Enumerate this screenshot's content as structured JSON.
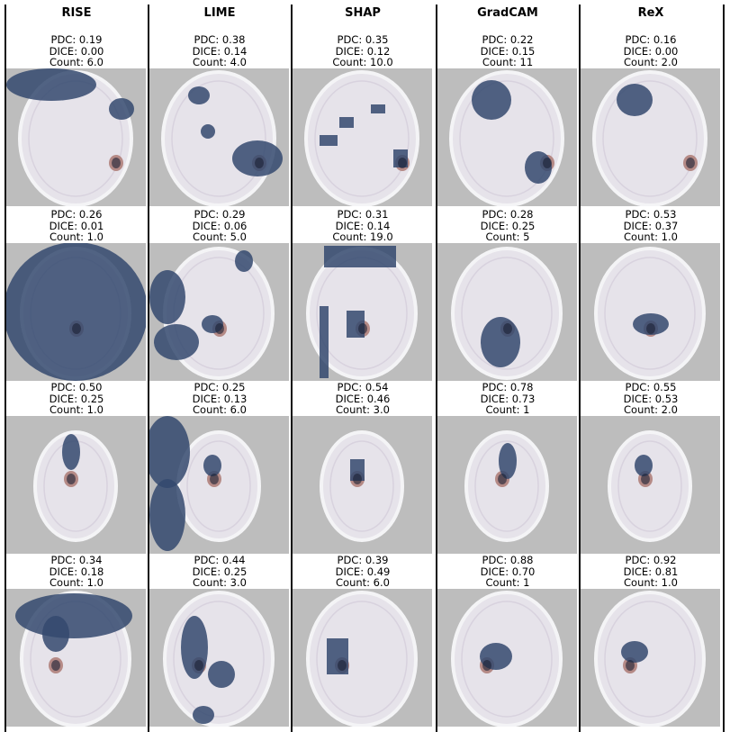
{
  "methods": [
    {
      "name": "RISE",
      "cells": [
        {
          "pdc": "PDC: 0.19",
          "dice": "DICE: 0.00",
          "count": "Count: 6.0"
        },
        {
          "pdc": "PDC: 0.26",
          "dice": "DICE: 0.01",
          "count": "Count: 1.0"
        },
        {
          "pdc": "PDC: 0.50",
          "dice": "DICE: 0.25",
          "count": "Count: 1.0"
        },
        {
          "pdc": "PDC: 0.34",
          "dice": "DICE: 0.18",
          "count": "Count: 1.0"
        }
      ]
    },
    {
      "name": "LIME",
      "cells": [
        {
          "pdc": "PDC: 0.38",
          "dice": "DICE: 0.14",
          "count": "Count: 4.0"
        },
        {
          "pdc": "PDC: 0.29",
          "dice": "DICE: 0.06",
          "count": "Count: 5.0"
        },
        {
          "pdc": "PDC: 0.25",
          "dice": "DICE: 0.13",
          "count": "Count: 6.0"
        },
        {
          "pdc": "PDC: 0.44",
          "dice": "DICE: 0.25",
          "count": "Count: 3.0"
        }
      ]
    },
    {
      "name": "SHAP",
      "cells": [
        {
          "pdc": "PDC: 0.35",
          "dice": "DICE: 0.12",
          "count": "Count: 10.0"
        },
        {
          "pdc": "PDC: 0.31",
          "dice": "DICE: 0.14",
          "count": "Count: 19.0"
        },
        {
          "pdc": "PDC: 0.54",
          "dice": "DICE: 0.46",
          "count": "Count: 3.0"
        },
        {
          "pdc": "PDC: 0.39",
          "dice": "DICE: 0.49",
          "count": "Count: 6.0"
        }
      ]
    },
    {
      "name": "GradCAM",
      "cells": [
        {
          "pdc": "PDC: 0.22",
          "dice": "DICE: 0.15",
          "count": "Count: 11"
        },
        {
          "pdc": "PDC: 0.28",
          "dice": "DICE: 0.25",
          "count": "Count: 5"
        },
        {
          "pdc": "PDC: 0.78",
          "dice": "DICE: 0.73",
          "count": "Count: 1"
        },
        {
          "pdc": "PDC: 0.88",
          "dice": "DICE: 0.70",
          "count": "Count: 1"
        }
      ]
    },
    {
      "name": "ReX",
      "cells": [
        {
          "pdc": "PDC: 0.16",
          "dice": "DICE: 0.00",
          "count": "Count: 2.0"
        },
        {
          "pdc": "PDC: 0.53",
          "dice": "DICE: 0.37",
          "count": "Count: 1.0"
        },
        {
          "pdc": "PDC: 0.55",
          "dice": "DICE: 0.53",
          "count": "Count: 2.0"
        },
        {
          "pdc": "PDC: 0.92",
          "dice": "DICE: 0.81",
          "count": "Count: 1.0"
        }
      ]
    }
  ],
  "colors": {
    "background": "#bdbdbd",
    "brain": "#e6e3ea",
    "overlay": "#34496e",
    "tumor": "#b58a86"
  }
}
